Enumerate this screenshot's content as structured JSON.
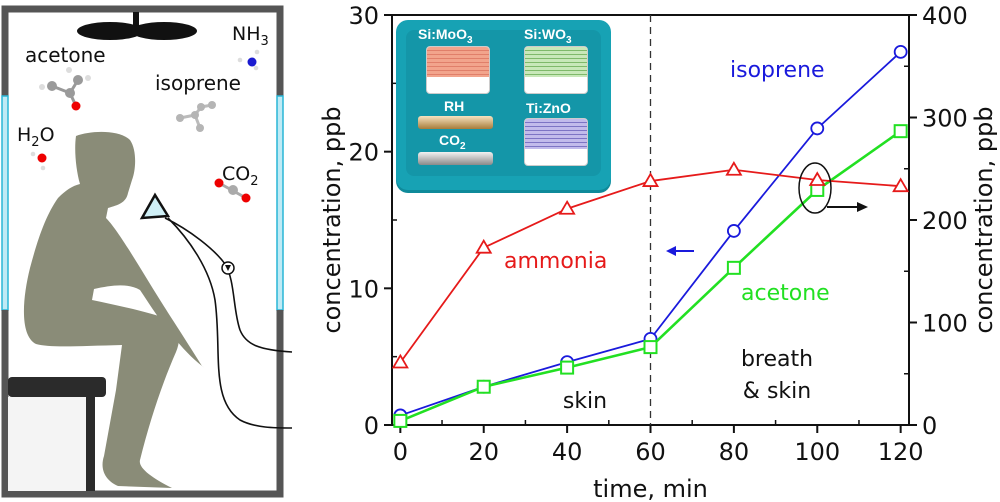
{
  "scene": {
    "molecules": [
      {
        "name": "acetone",
        "label": "acetone"
      },
      {
        "name": "nh3",
        "label": "NH",
        "sub": "3"
      },
      {
        "name": "isoprene",
        "label": "isoprene"
      },
      {
        "name": "h2o",
        "label": "H",
        "sub": "2",
        "tail": "O"
      },
      {
        "name": "co2",
        "label": "CO",
        "sub": "2"
      }
    ],
    "colors": {
      "wall": "#555555",
      "window": "#29b6d6",
      "person": "#8a8c78",
      "bench": "#2b2b2b"
    }
  },
  "inset": {
    "sensors": [
      {
        "label": "Si:MoO",
        "sub": "3",
        "color": "#f2a48c"
      },
      {
        "label": "Si:WO",
        "sub": "3",
        "color": "#a9d89a"
      },
      {
        "label": "Ti:ZnO",
        "sub": "",
        "color": "#a39ad8"
      }
    ],
    "rods": [
      {
        "label": "RH",
        "sub": ""
      },
      {
        "label": "CO",
        "sub": "2"
      }
    ]
  },
  "chart_data": {
    "type": "line",
    "x": [
      0,
      20,
      40,
      60,
      80,
      100,
      120
    ],
    "xlabel": "time, min",
    "ylabel_left": "concentration, ppb",
    "ylabel_right": "concentration, ppb",
    "xlim": [
      -2,
      122
    ],
    "ylim_left": [
      0,
      30
    ],
    "ylim_right": [
      0,
      400
    ],
    "xticks": [
      0,
      20,
      40,
      60,
      80,
      100,
      120
    ],
    "yticks_left": [
      0,
      10,
      20,
      30
    ],
    "yticks_right": [
      0,
      100,
      200,
      300,
      400
    ],
    "series": [
      {
        "name": "isoprene",
        "axis": "left",
        "color": "#1a1adc",
        "marker": "circle",
        "values": [
          0.7,
          2.8,
          4.6,
          6.3,
          14.2,
          21.7,
          27.3
        ]
      },
      {
        "name": "acetone",
        "axis": "left",
        "color": "#22e022",
        "marker": "square",
        "values": [
          0.3,
          2.8,
          4.2,
          5.7,
          11.5,
          17.2,
          21.5
        ]
      },
      {
        "name": "ammonia",
        "axis": "right",
        "color": "#e61a1a",
        "marker": "triangle",
        "values": [
          61,
          173,
          211,
          238,
          249,
          239,
          233
        ]
      }
    ],
    "annotations": {
      "divider_x": 60,
      "region_left": "skin",
      "region_right_1": "breath",
      "region_right_2": "& skin",
      "isoprene_label": "isoprene",
      "acetone_label": "acetone",
      "ammonia_label": "ammonia"
    }
  }
}
